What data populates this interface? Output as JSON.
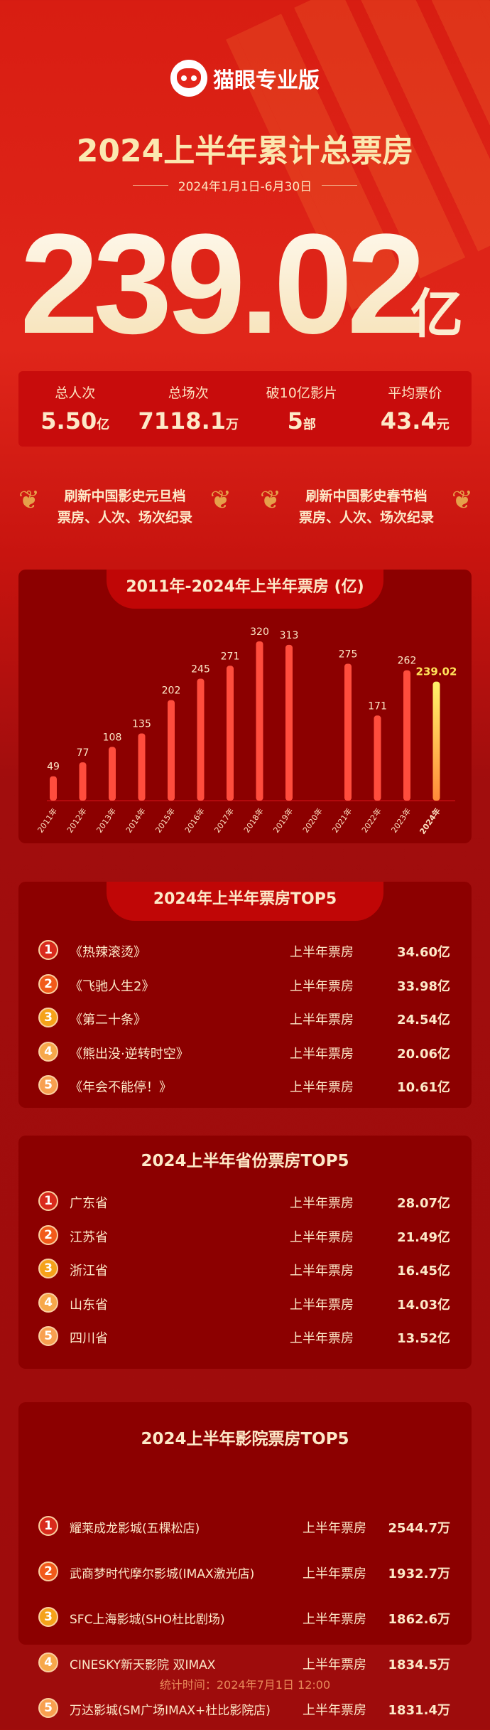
{
  "brand": {
    "name": "猫眼专业版",
    "icon": "cat-logo-icon"
  },
  "header": {
    "title": "2024上半年累计总票房",
    "date_range": "2024年1月1日-6月30日",
    "total": "239.02",
    "total_unit": "亿"
  },
  "stats": [
    {
      "label": "总人次",
      "value": "5.50",
      "unit": "亿"
    },
    {
      "label": "总场次",
      "value": "7118.1",
      "unit": "万"
    },
    {
      "label": "破10亿影片",
      "value": "5",
      "unit": "部"
    },
    {
      "label": "平均票价",
      "value": "43.4",
      "unit": "元"
    }
  ],
  "awards": [
    {
      "line1": "刷新中国影史元旦档",
      "line2": "票房、人次、场次纪录"
    },
    {
      "line1": "刷新中国影史春节档",
      "line2": "票房、人次、场次纪录"
    }
  ],
  "chart_data": {
    "type": "bar",
    "title": "2011年-2024年上半年票房 (亿)",
    "categories": [
      "2011年",
      "2012年",
      "2013年",
      "2014年",
      "2015年",
      "2016年",
      "2017年",
      "2018年",
      "2019年",
      "2020年",
      "2021年",
      "2022年",
      "2023年",
      "2024年"
    ],
    "values": [
      49,
      77,
      108,
      135,
      202,
      245,
      271,
      320,
      313,
      null,
      275,
      171,
      262,
      239.02
    ],
    "labels": [
      "49",
      "77",
      "108",
      "135",
      "202",
      "245",
      "271",
      "320",
      "313",
      "",
      "275",
      "171",
      "262",
      "239.02"
    ],
    "colors": {
      "bar": "#ff4d3d",
      "highlight": "#ffe25a"
    },
    "ylim": [
      0,
      320
    ]
  },
  "films": {
    "title": "2024年上半年票房TOP5",
    "items": [
      {
        "rank": "1",
        "name": "《热辣滚烫》",
        "label": "上半年票房",
        "value": "34.60亿"
      },
      {
        "rank": "2",
        "name": "《飞驰人生2》",
        "label": "上半年票房",
        "value": "33.98亿"
      },
      {
        "rank": "3",
        "name": "《第二十条》",
        "label": "上半年票房",
        "value": "24.54亿"
      },
      {
        "rank": "4",
        "name": "《熊出没·逆转时空》",
        "label": "上半年票房",
        "value": "20.06亿"
      },
      {
        "rank": "5",
        "name": "《年会不能停！》",
        "label": "上半年票房",
        "value": "10.61亿"
      }
    ]
  },
  "provinces": {
    "title": "2024上半年省份票房TOP5",
    "items": [
      {
        "rank": "1",
        "name": "广东省",
        "label": "上半年票房",
        "value": "28.07亿"
      },
      {
        "rank": "2",
        "name": "江苏省",
        "label": "上半年票房",
        "value": "21.49亿"
      },
      {
        "rank": "3",
        "name": "浙江省",
        "label": "上半年票房",
        "value": "16.45亿"
      },
      {
        "rank": "4",
        "name": "山东省",
        "label": "上半年票房",
        "value": "14.03亿"
      },
      {
        "rank": "5",
        "name": "四川省",
        "label": "上半年票房",
        "value": "13.52亿"
      }
    ]
  },
  "cinemas": {
    "title": "2024上半年影院票房TOP5",
    "items": [
      {
        "rank": "1",
        "name": "耀莱成龙影城(五棵松店)",
        "label": "上半年票房",
        "value": "2544.7万"
      },
      {
        "rank": "2",
        "name": "武商梦时代摩尔影城(IMAX激光店)",
        "label": "上半年票房",
        "value": "1932.7万"
      },
      {
        "rank": "3",
        "name": "SFC上海影城(SHO杜比剧场)",
        "label": "上半年票房",
        "value": "1862.6万"
      },
      {
        "rank": "4",
        "name": "CINESKY新天影院 双IMAX",
        "label": "上半年票房",
        "value": "1834.5万"
      },
      {
        "rank": "5",
        "name": "万达影城(SM广场IMAX+杜比影院店)",
        "label": "上半年票房",
        "value": "1831.4万"
      }
    ]
  },
  "rank_colors": [
    "#d92a1c",
    "#f25a1a",
    "#f5a21a",
    "#f7a84a",
    "#f8a050"
  ],
  "footer": "统计时间：2024年7月1日  12:00"
}
